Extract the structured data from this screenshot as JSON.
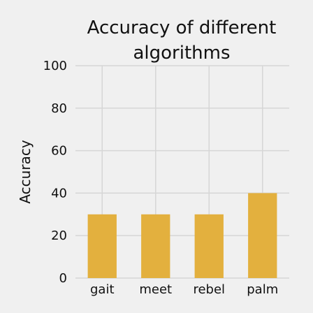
{
  "chart_data": {
    "type": "bar",
    "title_lines": [
      "Accuracy of different",
      "algorithms"
    ],
    "xlabel": "",
    "ylabel": "Accuracy",
    "categories": [
      "gait",
      "meet",
      "rebel",
      "palm"
    ],
    "values": [
      30,
      30,
      30,
      40
    ],
    "ylim": [
      0,
      100
    ],
    "yticks": [
      0,
      20,
      40,
      60,
      80,
      100
    ],
    "grid": true,
    "bar_color": "#e3b03e",
    "grid_color": "#d6d6d6",
    "background": "#f0f0f0"
  }
}
